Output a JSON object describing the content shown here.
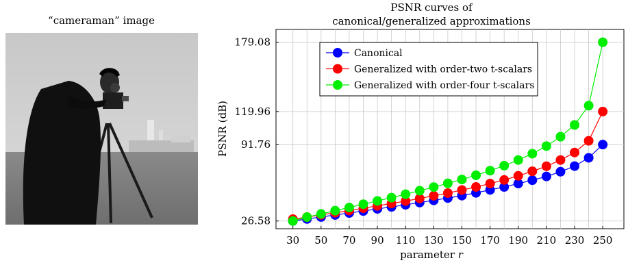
{
  "left_panel": {
    "title": "“cameraman” image"
  },
  "chart_data": {
    "type": "line",
    "title_lines": [
      "PSNR curves of",
      "canonical/generalized approximations"
    ],
    "xlabel": "parameter r",
    "ylabel": "PSNR (dB)",
    "x": [
      30,
      40,
      50,
      60,
      70,
      80,
      90,
      100,
      110,
      120,
      130,
      140,
      150,
      160,
      170,
      180,
      190,
      200,
      210,
      220,
      230,
      240,
      250
    ],
    "xlim": [
      18,
      265
    ],
    "ylim": [
      20,
      190
    ],
    "x_ticks": [
      30,
      50,
      70,
      90,
      110,
      130,
      150,
      170,
      190,
      210,
      230,
      250
    ],
    "y_ticks": [
      26.58,
      91.76,
      119.96,
      179.08
    ],
    "y_tick_labels": [
      "26.58",
      "91.76",
      "119.96",
      "179.08"
    ],
    "grid": true,
    "legend_position": "top-left",
    "series": [
      {
        "name": "Canonical",
        "color": "#0000ff",
        "values": [
          26.58,
          28.3,
          30.0,
          31.7,
          33.4,
          35.1,
          36.9,
          38.6,
          40.4,
          42.3,
          44.2,
          46.2,
          48.2,
          50.6,
          53.1,
          55.6,
          58.5,
          61.4,
          64.6,
          68.6,
          73.4,
          80.5,
          91.76
        ]
      },
      {
        "name": "Generalized with order-two t-scalars",
        "color": "#ff0000",
        "values": [
          28.2,
          29.9,
          31.8,
          33.6,
          35.5,
          37.5,
          39.5,
          41.5,
          43.6,
          45.8,
          48.1,
          50.4,
          53.0,
          55.6,
          58.5,
          61.6,
          65.1,
          69.0,
          73.3,
          78.6,
          85.0,
          95.0,
          119.96
        ]
      },
      {
        "name": "Generalized with order-four t-scalars",
        "color": "#00ee00",
        "values": [
          26.58,
          29.9,
          32.6,
          35.4,
          38.1,
          40.9,
          43.7,
          46.5,
          49.4,
          52.4,
          55.5,
          58.7,
          62.0,
          65.6,
          69.5,
          73.8,
          78.6,
          84.0,
          90.5,
          98.5,
          108.5,
          125.0,
          179.08
        ]
      }
    ]
  }
}
